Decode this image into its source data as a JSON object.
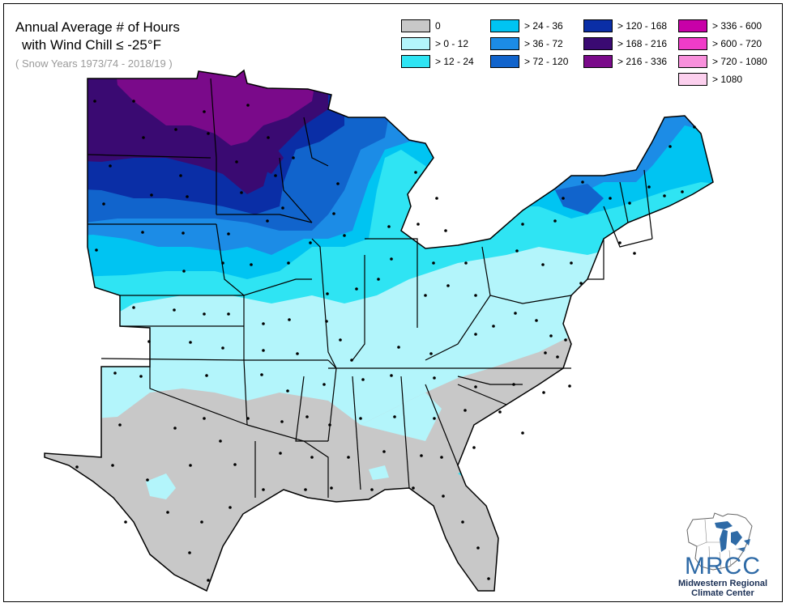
{
  "title": {
    "line1": "Annual Average # of Hours",
    "line2": "with Wind Chill ≤ -25°F",
    "subtitle": "( Snow Years 1973/74 - 2018/19 )"
  },
  "legend": [
    {
      "label": "0",
      "color": "#c8c8c8"
    },
    {
      "label": "> 0 - 12",
      "color": "#b3f5fb"
    },
    {
      "label": "> 12 - 24",
      "color": "#2fe4f3"
    },
    {
      "label": "> 24 - 36",
      "color": "#00c4f2"
    },
    {
      "label": "> 36 - 72",
      "color": "#1c8ce6"
    },
    {
      "label": "> 72 - 120",
      "color": "#1164cc"
    },
    {
      "label": "> 120 - 168",
      "color": "#0a2ea6"
    },
    {
      "label": "> 168 - 216",
      "color": "#3a0a72"
    },
    {
      "label": "> 216 - 336",
      "color": "#7a0a8a"
    },
    {
      "label": "> 336 - 600",
      "color": "#c800a8"
    },
    {
      "label": "> 600 - 720",
      "color": "#f03cc8"
    },
    {
      "label": "> 720 - 1080",
      "color": "#f890dc"
    },
    {
      "label": "> 1080",
      "color": "#fcd0ee"
    }
  ],
  "logo": {
    "name": "MRCC",
    "line1": "Midwestern Regional",
    "line2": "Climate Center"
  }
}
